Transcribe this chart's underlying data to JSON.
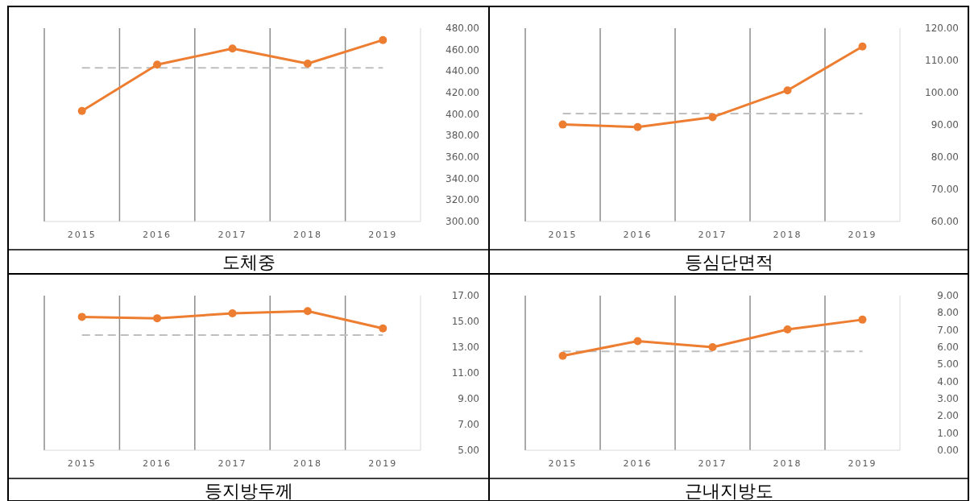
{
  "chart_data": [
    {
      "type": "line",
      "title": "도체중",
      "categories": [
        "2015",
        "2016",
        "2017",
        "2018",
        "2019"
      ],
      "series": [
        {
          "color": "#ed7d31",
          "values": [
            403,
            446,
            461,
            447,
            469
          ]
        }
      ],
      "ylim": [
        300,
        480
      ],
      "yticks": [
        {
          "value": 300,
          "label": "300.00"
        },
        {
          "value": 320,
          "label": "320.00"
        },
        {
          "value": 340,
          "label": "340.00"
        },
        {
          "value": 360,
          "label": "360.00"
        },
        {
          "value": 380,
          "label": "380.00"
        },
        {
          "value": 400,
          "label": "400.00"
        },
        {
          "value": 420,
          "label": "420.00"
        },
        {
          "value": 440,
          "label": "440.00"
        },
        {
          "value": 460,
          "label": "460.00"
        },
        {
          "value": 480,
          "label": "480.00"
        }
      ],
      "ref_lines": [
        {
          "axis": "y",
          "value": 443,
          "color": "#bfbfbf",
          "line_style": "dashed"
        }
      ],
      "grid": "x",
      "marker": "circle"
    },
    {
      "type": "line",
      "title": "등심단면적",
      "categories": [
        "2015",
        "2016",
        "2017",
        "2018",
        "2019"
      ],
      "series": [
        {
          "color": "#ed7d31",
          "values": [
            90.1,
            89.3,
            92.4,
            100.7,
            114.3
          ]
        }
      ],
      "ylim": [
        60,
        120
      ],
      "yticks": [
        {
          "value": 60,
          "label": "60.00"
        },
        {
          "value": 70,
          "label": "70.00"
        },
        {
          "value": 80,
          "label": "80.00"
        },
        {
          "value": 90,
          "label": "90.00"
        },
        {
          "value": 100,
          "label": "100.00"
        },
        {
          "value": 110,
          "label": "110.00"
        },
        {
          "value": 120,
          "label": "120.00"
        }
      ],
      "ref_lines": [
        {
          "axis": "y",
          "value": 93.5,
          "color": "#bfbfbf",
          "line_style": "dashed"
        }
      ],
      "grid": "x",
      "marker": "circle"
    },
    {
      "type": "line",
      "title": "등지방두께",
      "categories": [
        "2015",
        "2016",
        "2017",
        "2018",
        "2019"
      ],
      "series": [
        {
          "color": "#ed7d31",
          "values": [
            15.35,
            15.24,
            15.62,
            15.8,
            14.45
          ]
        }
      ],
      "ylim": [
        5,
        17
      ],
      "yticks": [
        {
          "value": 5,
          "label": "5.00"
        },
        {
          "value": 7,
          "label": "7.00"
        },
        {
          "value": 9,
          "label": "9.00"
        },
        {
          "value": 11,
          "label": "11.00"
        },
        {
          "value": 13,
          "label": "13.00"
        },
        {
          "value": 15,
          "label": "15.00"
        },
        {
          "value": 17,
          "label": "17.00"
        }
      ],
      "ref_lines": [
        {
          "axis": "y",
          "value": 13.93,
          "color": "#bfbfbf",
          "line_style": "dashed"
        }
      ],
      "grid": "x",
      "marker": "circle"
    },
    {
      "type": "line",
      "title": "근내지방도",
      "categories": [
        "2015",
        "2016",
        "2017",
        "2018",
        "2019"
      ],
      "series": [
        {
          "color": "#ed7d31",
          "values": [
            5.5,
            6.35,
            6.0,
            7.03,
            7.6
          ]
        }
      ],
      "ylim": [
        0,
        9
      ],
      "yticks": [
        {
          "value": 0,
          "label": "0.00"
        },
        {
          "value": 1,
          "label": "1.00"
        },
        {
          "value": 2,
          "label": "2.00"
        },
        {
          "value": 3,
          "label": "3.00"
        },
        {
          "value": 4,
          "label": "4.00"
        },
        {
          "value": 5,
          "label": "5.00"
        },
        {
          "value": 6,
          "label": "6.00"
        },
        {
          "value": 7,
          "label": "7.00"
        },
        {
          "value": 8,
          "label": "8.00"
        },
        {
          "value": 9,
          "label": "9.00"
        }
      ],
      "ref_lines": [
        {
          "axis": "y",
          "value": 5.75,
          "color": "#bfbfbf",
          "line_style": "dashed"
        }
      ],
      "grid": "x",
      "marker": "circle"
    }
  ]
}
